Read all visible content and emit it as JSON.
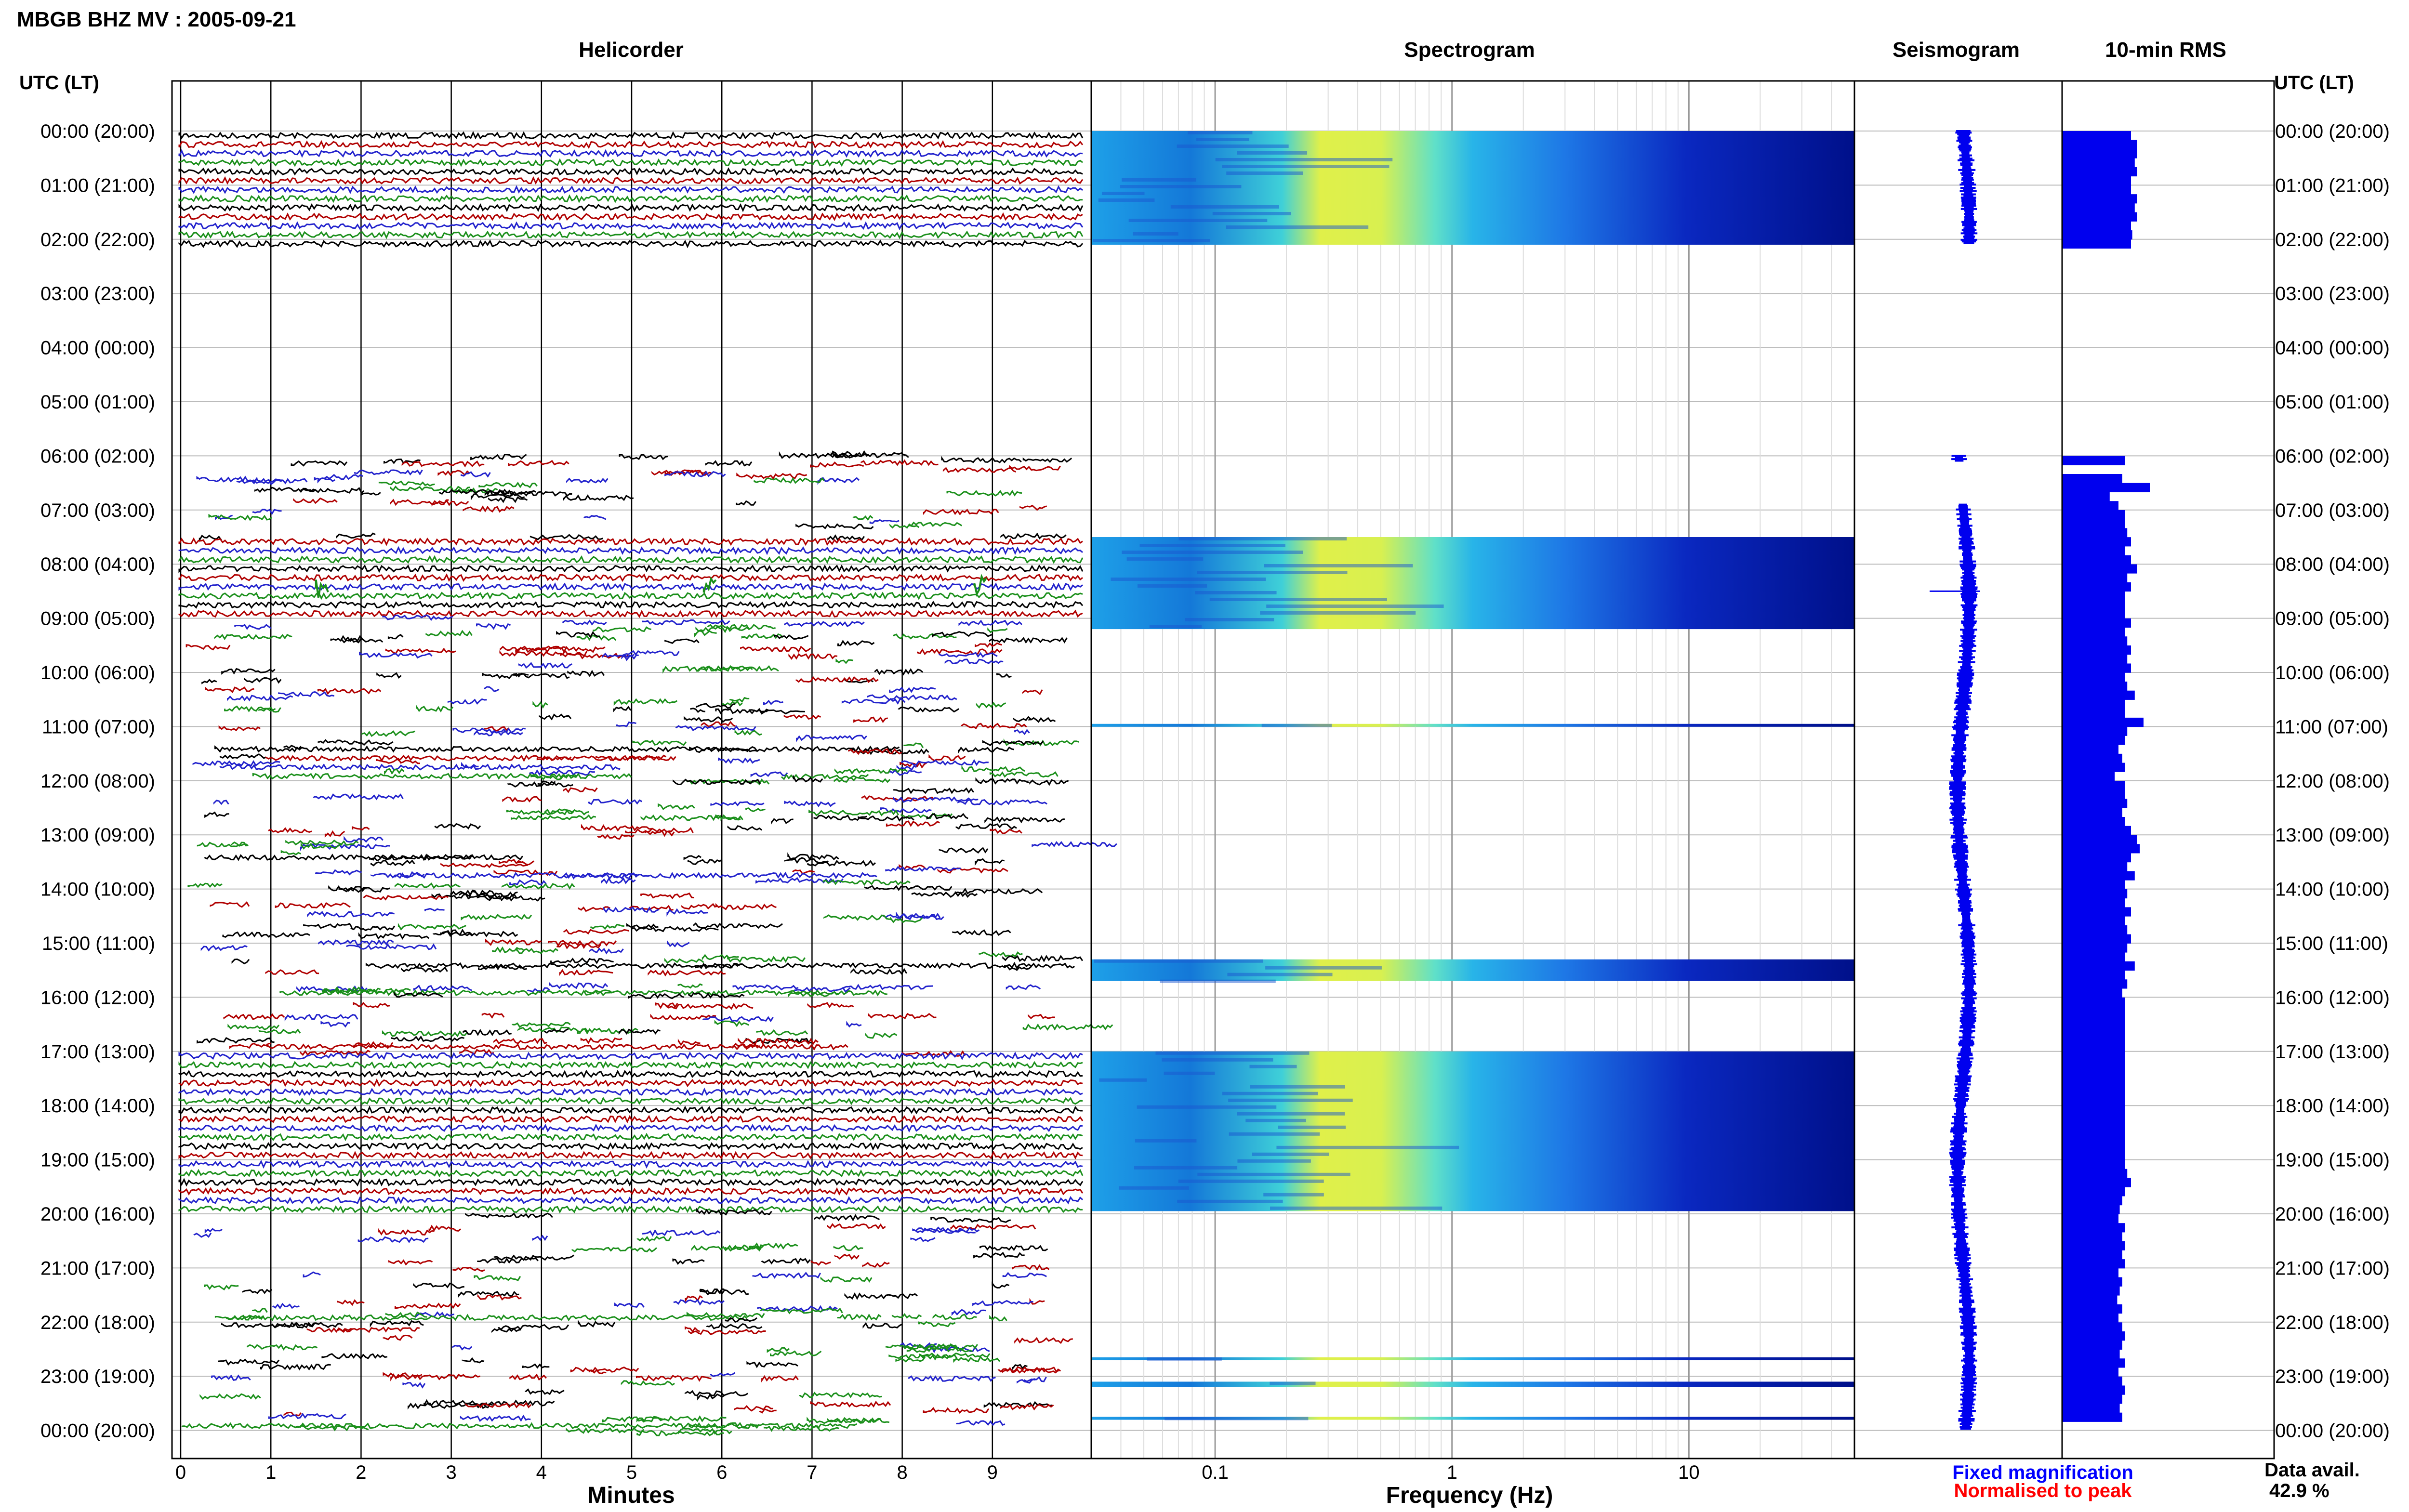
{
  "header": {
    "title": "MBGB BHZ MV : 2005-09-21"
  },
  "panels": {
    "helicorder": "Helicorder",
    "spectrogram": "Spectrogram",
    "seismogram": "Seismogram",
    "rms": "10-min RMS"
  },
  "time_axis_label": "UTC (LT)",
  "footer": {
    "fixed_label": "Fixed magnification",
    "norm_label": "Normalised to peak",
    "avail_label": "Data avail.",
    "avail_value": "42.9 %"
  },
  "colors": {
    "trace_cycle": [
      "#000000",
      "#b00000",
      "#2222cc",
      "#1a8f1a"
    ],
    "seismogram": "#0000ee",
    "rms": "#0000ee",
    "fixed_label": "#0000ff",
    "norm_label": "#ff0000"
  },
  "chart_data": [
    {
      "type": "line",
      "title": "Helicorder",
      "xlabel": "Minutes",
      "xlim": [
        0,
        10
      ],
      "xticks": [
        "0",
        "1",
        "2",
        "3",
        "4",
        "5",
        "6",
        "7",
        "8",
        "9"
      ],
      "ylabel": "UTC (LT)",
      "y_ticks": [
        "00:00 (20:00)",
        "01:00 (21:00)",
        "02:00 (22:00)",
        "03:00 (23:00)",
        "04:00 (00:00)",
        "05:00 (01:00)",
        "06:00 (02:00)",
        "07:00 (03:00)",
        "08:00 (04:00)",
        "09:00 (05:00)",
        "10:00 (06:00)",
        "11:00 (07:00)",
        "12:00 (08:00)",
        "13:00 (09:00)",
        "14:00 (10:00)",
        "15:00 (11:00)",
        "16:00 (12:00)",
        "17:00 (13:00)",
        "18:00 (14:00)",
        "19:00 (15:00)",
        "20:00 (16:00)",
        "21:00 (17:00)",
        "22:00 (18:00)",
        "23:00 (19:00)",
        "00:00 (20:00)"
      ],
      "continuous_hours": [
        [
          0,
          2.1
        ],
        [
          7.5,
          9.0
        ],
        [
          17.0,
          19.9
        ]
      ],
      "gappy_hours": [
        [
          6.0,
          7.5
        ],
        [
          9.0,
          17.0
        ],
        [
          19.9,
          24.0
        ]
      ],
      "events": [
        {
          "hour": 8.45,
          "minute": 1.5
        },
        {
          "hour": 8.45,
          "minute": 5.8
        },
        {
          "hour": 8.4,
          "minute": 8.8
        }
      ]
    },
    {
      "type": "heatmap",
      "title": "Spectrogram",
      "xlabel": "Frequency (Hz)",
      "xscale": "log",
      "xlim": [
        0.03,
        50
      ],
      "xticks": [
        "0.1",
        "1",
        "10"
      ],
      "bands_hours": [
        [
          0,
          2.1
        ],
        [
          7.5,
          9.2
        ],
        [
          10.95,
          11.0
        ],
        [
          15.3,
          15.7
        ],
        [
          17.0,
          19.95
        ],
        [
          22.65,
          22.7
        ],
        [
          23.1,
          23.2
        ],
        [
          23.75,
          23.8
        ]
      ]
    },
    {
      "type": "line",
      "title": "Seismogram",
      "segments_hours": [
        [
          0,
          2.1
        ],
        [
          6.0,
          6.1
        ],
        [
          6.9,
          24.0
        ]
      ]
    },
    {
      "type": "bar",
      "title": "10-min RMS",
      "orientation": "horizontal",
      "start_hour": 0,
      "bin_hours": 0.1667,
      "values": [
        0.55,
        0.6,
        0.6,
        0.58,
        0.6,
        0.55,
        0.55,
        0.6,
        0.58,
        0.6,
        0.55,
        0.56,
        0.55,
        0,
        0,
        0,
        0,
        0,
        0,
        0,
        0,
        0,
        0,
        0,
        0,
        0,
        0,
        0,
        0,
        0,
        0,
        0,
        0,
        0,
        0,
        0,
        0.5,
        0,
        0.48,
        0.7,
        0.38,
        0.45,
        0.5,
        0.5,
        0.52,
        0.55,
        0.5,
        0.55,
        0.6,
        0.52,
        0.55,
        0.5,
        0.5,
        0.5,
        0.55,
        0.5,
        0.52,
        0.55,
        0.52,
        0.55,
        0.5,
        0.52,
        0.58,
        0.5,
        0.5,
        0.65,
        0.52,
        0.5,
        0.45,
        0.48,
        0.5,
        0.42,
        0.5,
        0.5,
        0.52,
        0.48,
        0.5,
        0.55,
        0.6,
        0.62,
        0.55,
        0.52,
        0.58,
        0.5,
        0.52,
        0.5,
        0.55,
        0.5,
        0.52,
        0.55,
        0.52,
        0.5,
        0.58,
        0.5,
        0.52,
        0.48,
        0.5,
        0.5,
        0.5,
        0.5,
        0.5,
        0.5,
        0.5,
        0.5,
        0.5,
        0.5,
        0.5,
        0.5,
        0.5,
        0.5,
        0.5,
        0.5,
        0.5,
        0.5,
        0.5,
        0.52,
        0.55,
        0.5,
        0.48,
        0.46,
        0.45,
        0.5,
        0.48,
        0.5,
        0.48,
        0.5,
        0.45,
        0.48,
        0.46,
        0.44,
        0.48,
        0.45,
        0.48,
        0.5,
        0.48,
        0.46,
        0.5,
        0.45,
        0.48,
        0.5,
        0.48,
        0.46,
        0.48
      ]
    }
  ]
}
